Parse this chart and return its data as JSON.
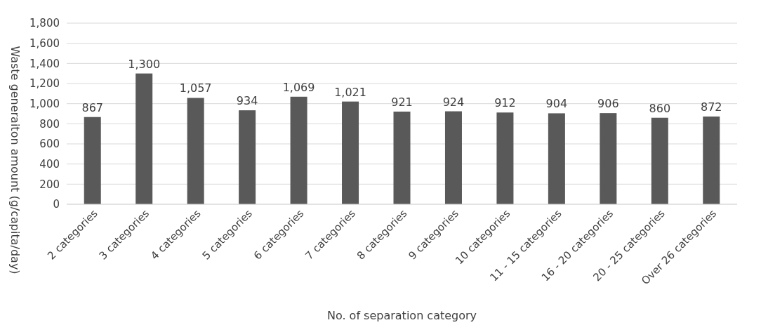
{
  "chart_data": {
    "type": "bar",
    "xlabel": "No. of separation category",
    "ylabel": "Waste generaiton amount (g/capita/day)",
    "categories": [
      "2 categories",
      "3 categories",
      "4 categories",
      "5 categories",
      "6 categories",
      "7 categories",
      "8 categories",
      "9 categories",
      "10 categories",
      "11 - 15 categories",
      "16 - 20 categories",
      "20 - 25 categories",
      "Over 26 categories"
    ],
    "values": [
      867,
      1300,
      1057,
      934,
      1069,
      1021,
      921,
      924,
      912,
      904,
      906,
      860,
      872
    ],
    "value_labels": [
      "867",
      "1,300",
      "1,057",
      "934",
      "1,069",
      "1,021",
      "921",
      "924",
      "912",
      "904",
      "906",
      "860",
      "872"
    ],
    "color": "#595959",
    "grid": "y",
    "ylim": [
      0,
      1800
    ],
    "yticks": [
      {
        "value": 0,
        "label": "0"
      },
      {
        "value": 200,
        "label": "200"
      },
      {
        "value": 400,
        "label": "400"
      },
      {
        "value": 600,
        "label": "600"
      },
      {
        "value": 800,
        "label": "800"
      },
      {
        "value": 1000,
        "label": "1,000"
      },
      {
        "value": 1200,
        "label": "1,200"
      },
      {
        "value": 1400,
        "label": "1,400"
      },
      {
        "value": 1600,
        "label": "1,600"
      },
      {
        "value": 1800,
        "label": "1,800"
      }
    ]
  }
}
